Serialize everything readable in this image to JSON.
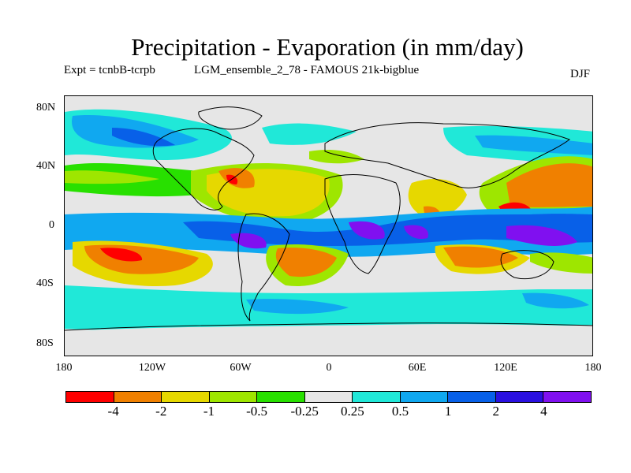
{
  "title": "Precipitation - Evaporation (in mm/day)",
  "experiment": "Expt = tcnbB-tcrpb",
  "ensemble": "LGM_ensemble_2_78 - FAMOUS 21k-bigblue",
  "season": "DJF",
  "map": {
    "land_color": "#e6e6e6",
    "y_ticks": [
      "80N",
      "40N",
      "0",
      "40S",
      "80S"
    ],
    "x_ticks": [
      "180",
      "120W",
      "60W",
      "0",
      "60E",
      "120E",
      "180"
    ]
  },
  "colorbar": {
    "colors": [
      "#ff0000",
      "#f08000",
      "#e6d800",
      "#9ee600",
      "#28e000",
      "#e6e6e6",
      "#20e8d8",
      "#10a8f0",
      "#0860e8",
      "#2a10e0",
      "#8010f0"
    ],
    "labels": [
      "-4",
      "-2",
      "-1",
      "-0.5",
      "-0.25",
      "0.25",
      "0.5",
      "1",
      "2",
      "4"
    ]
  }
}
